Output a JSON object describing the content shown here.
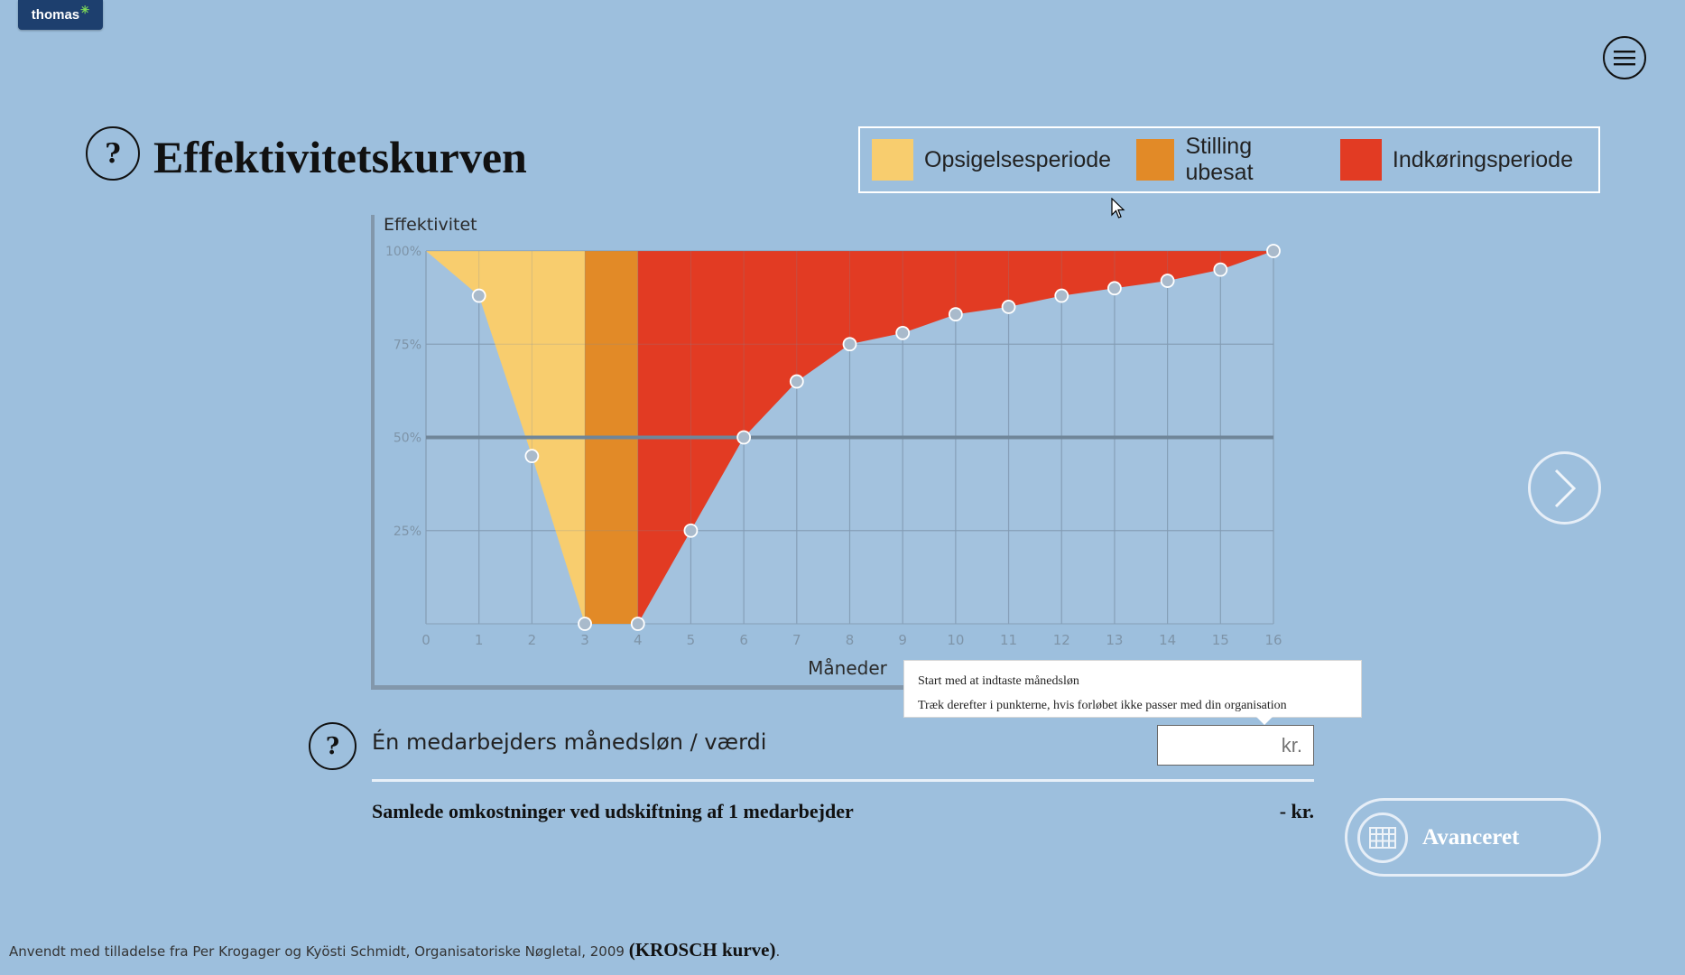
{
  "header": {
    "logo_text": "thomas",
    "title": "Effektivitetskurven",
    "help_symbol": "?",
    "menu_icon": "hamburger-icon"
  },
  "legend": [
    {
      "label": "Opsigelsesperiode",
      "color": "#f8cd6e"
    },
    {
      "label": "Stilling ubesat",
      "color": "#e28a27"
    },
    {
      "label": "Indkøringsperiode",
      "color": "#e23b23"
    }
  ],
  "chart_data": {
    "type": "area",
    "ylabel": "Effektivitet",
    "xlabel": "Måneder",
    "x": [
      0,
      1,
      2,
      3,
      4,
      5,
      6,
      7,
      8,
      9,
      10,
      11,
      12,
      13,
      14,
      15,
      16
    ],
    "y": [
      100,
      88,
      45,
      0,
      0,
      25,
      50,
      65,
      75,
      78,
      83,
      85,
      88,
      90,
      92,
      95,
      100
    ],
    "ylim": [
      0,
      100
    ],
    "xlim": [
      0,
      16
    ],
    "y_ticks": [
      "100%",
      "75%",
      "50%",
      "25%"
    ],
    "y_tick_values": [
      100,
      75,
      50,
      25
    ],
    "grid": true,
    "reference_line_y": 50,
    "periods": [
      {
        "name": "Opsigelsesperiode",
        "from": 0,
        "to": 3,
        "color": "#f8cd6e"
      },
      {
        "name": "Stilling ubesat",
        "from": 3,
        "to": 4,
        "color": "#e28a27"
      },
      {
        "name": "Indkøringsperiode",
        "from": 4,
        "to": 16,
        "color": "#e23b23"
      }
    ],
    "point_color": "#a9bacb"
  },
  "tooltip": {
    "line1": "Start med at indtaste månedsløn",
    "line2": "Træk derefter i punkterne, hvis forløbet ikke passer med din organisation"
  },
  "salary": {
    "label": "Én medarbejders månedsløn / værdi",
    "placeholder": "kr.",
    "value": ""
  },
  "total": {
    "label": "Samlede omkostninger ved udskiftning af 1 medarbejder",
    "value": "- kr."
  },
  "advanced_button": {
    "label": "Avanceret",
    "icon": "table-icon"
  },
  "next_button": {
    "icon": "chevron-right-icon"
  },
  "footer": {
    "text": "Anvendt med tilladelse fra Per Krogager og Kyösti Schmidt, Organisatoriske Nøgletal, 2009",
    "highlight": "(KROSCH kurve)",
    "end": "."
  }
}
